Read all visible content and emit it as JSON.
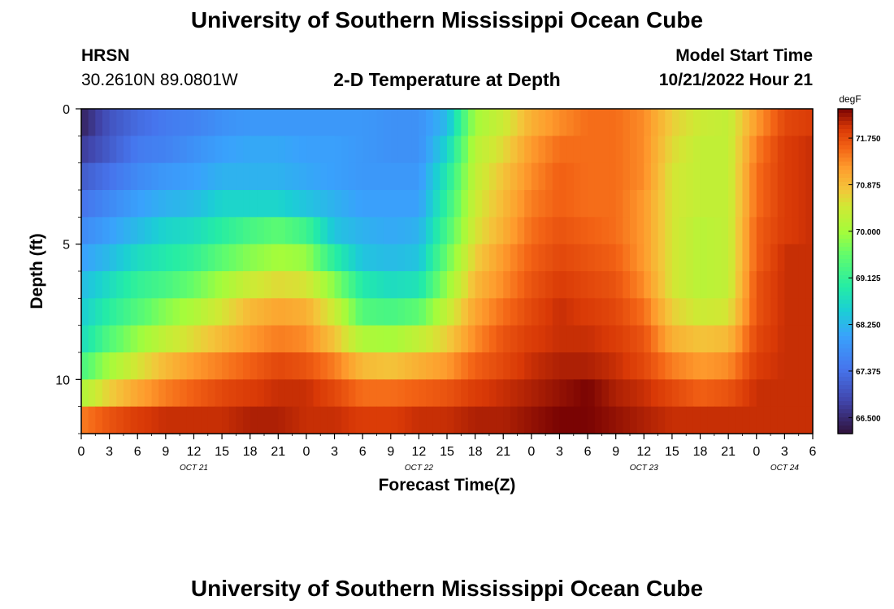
{
  "header": {
    "title": "University of Southern Mississippi Ocean Cube",
    "station_name": "HRSN",
    "station_coords": "30.2610N  89.0801W",
    "plot_title": "2-D Temperature at Depth",
    "model_start_label": "Model Start Time",
    "model_start_value": "10/21/2022 Hour 21"
  },
  "footer": {
    "title": "University of Southern Mississippi Ocean Cube"
  },
  "chart_data": {
    "type": "heatmap",
    "title": "2-D Temperature at Depth",
    "xlabel": "Forecast Time(Z)",
    "ylabel": "Depth (ft)",
    "x_unit": "hours since Oct 21 00Z",
    "xlim": [
      0,
      78
    ],
    "ylim": [
      12,
      0
    ],
    "x_ticks": [
      0,
      3,
      6,
      9,
      12,
      15,
      18,
      21,
      24,
      27,
      30,
      33,
      36,
      39,
      42,
      45,
      48,
      51,
      54,
      57,
      60,
      63,
      66,
      69,
      72,
      75,
      78
    ],
    "x_tick_labels": [
      "0",
      "3",
      "6",
      "9",
      "12",
      "15",
      "18",
      "21",
      "0",
      "3",
      "6",
      "9",
      "12",
      "15",
      "18",
      "21",
      "0",
      "3",
      "6",
      "9",
      "12",
      "15",
      "18",
      "21",
      "0",
      "3",
      "6"
    ],
    "date_labels": [
      {
        "text": "OCT 21",
        "hour": 12
      },
      {
        "text": "OCT 22",
        "hour": 36
      },
      {
        "text": "OCT 23",
        "hour": 60
      },
      {
        "text": "OCT 24",
        "hour": 75
      }
    ],
    "y_ticks": [
      0,
      5,
      10
    ],
    "y_tick_labels": [
      "0",
      "5",
      "10"
    ],
    "colorbar": {
      "unit": "degF",
      "min": 66.2,
      "max": 72.3,
      "ticks": [
        71.75,
        70.875,
        70.0,
        69.125,
        68.25,
        67.375,
        66.5
      ],
      "tick_labels": [
        "71.750",
        "70.875",
        "70.000",
        "69.125",
        "68.250",
        "67.375",
        "66.500"
      ],
      "colormap": "turbo"
    },
    "depth_rows": [
      0.5,
      1.5,
      2.5,
      3.5,
      4.5,
      5.5,
      6.5,
      7.5,
      8.5,
      9.5,
      10.5,
      11.5
    ],
    "time_columns": [
      0,
      3,
      6,
      9,
      12,
      15,
      18,
      21,
      24,
      27,
      30,
      33,
      36,
      39,
      42,
      45,
      48,
      51,
      54,
      57,
      60,
      63,
      66,
      69,
      72,
      75,
      78
    ],
    "values_degF": [
      [
        66.4,
        67.0,
        67.3,
        67.5,
        67.6,
        67.8,
        67.9,
        67.9,
        67.9,
        67.9,
        67.9,
        67.8,
        67.8,
        68.3,
        70.0,
        70.4,
        71.0,
        71.3,
        71.5,
        71.5,
        71.3,
        70.7,
        70.4,
        70.3,
        71.2,
        71.8,
        71.9
      ],
      [
        66.7,
        67.1,
        67.5,
        67.6,
        67.8,
        68.0,
        68.1,
        68.1,
        68.0,
        68.0,
        67.9,
        67.8,
        67.8,
        68.6,
        70.2,
        70.6,
        71.2,
        71.5,
        71.5,
        71.5,
        71.3,
        70.6,
        70.3,
        70.3,
        71.4,
        71.9,
        72.0
      ],
      [
        67.1,
        67.4,
        67.7,
        67.9,
        68.0,
        68.2,
        68.2,
        68.2,
        68.1,
        68.0,
        67.9,
        67.9,
        67.9,
        68.9,
        70.3,
        70.8,
        71.3,
        71.6,
        71.5,
        71.5,
        71.3,
        70.5,
        70.3,
        70.3,
        71.5,
        71.9,
        72.0
      ],
      [
        67.4,
        67.7,
        68.0,
        68.2,
        68.3,
        68.6,
        68.6,
        68.6,
        68.4,
        68.2,
        68.0,
        68.0,
        68.0,
        69.1,
        70.4,
        70.9,
        71.4,
        71.6,
        71.5,
        71.5,
        71.2,
        70.5,
        70.3,
        70.3,
        71.5,
        71.9,
        72.0
      ],
      [
        67.7,
        68.0,
        68.3,
        68.6,
        68.7,
        69.0,
        69.3,
        69.5,
        69.2,
        68.4,
        68.2,
        68.1,
        68.2,
        69.3,
        70.5,
        71.0,
        71.5,
        71.7,
        71.6,
        71.5,
        71.2,
        70.5,
        70.2,
        70.3,
        71.6,
        71.9,
        72.0
      ],
      [
        68.0,
        68.3,
        68.7,
        68.9,
        69.1,
        69.5,
        69.8,
        70.0,
        69.9,
        69.0,
        68.4,
        68.3,
        68.4,
        69.6,
        70.7,
        71.2,
        71.6,
        71.8,
        71.7,
        71.6,
        71.2,
        70.5,
        70.2,
        70.3,
        71.6,
        72.0,
        72.0
      ],
      [
        68.3,
        68.7,
        69.1,
        69.3,
        69.6,
        70.0,
        70.4,
        70.6,
        70.5,
        69.8,
        68.9,
        68.7,
        68.8,
        69.9,
        70.9,
        71.3,
        71.7,
        71.9,
        71.8,
        71.7,
        71.3,
        70.5,
        70.2,
        70.3,
        71.7,
        72.0,
        72.0
      ],
      [
        68.5,
        69.0,
        69.4,
        69.8,
        70.1,
        70.5,
        70.9,
        71.1,
        71.0,
        70.4,
        69.4,
        69.3,
        69.5,
        70.3,
        71.1,
        71.5,
        71.8,
        72.0,
        71.9,
        71.8,
        71.5,
        70.7,
        70.4,
        70.5,
        71.7,
        72.0,
        72.0
      ],
      [
        68.7,
        69.4,
        69.9,
        70.3,
        70.6,
        70.9,
        71.2,
        71.4,
        71.3,
        70.8,
        70.1,
        70.0,
        70.3,
        70.7,
        71.3,
        71.7,
        71.9,
        72.0,
        72.0,
        71.9,
        71.7,
        71.0,
        70.8,
        70.9,
        71.8,
        72.0,
        72.0
      ],
      [
        69.3,
        70.0,
        70.5,
        70.9,
        71.2,
        71.4,
        71.6,
        71.8,
        71.7,
        71.4,
        70.9,
        70.8,
        71.0,
        71.2,
        71.6,
        71.8,
        72.0,
        72.1,
        72.1,
        72.0,
        71.8,
        71.4,
        71.2,
        71.3,
        71.9,
        72.0,
        72.0
      ],
      [
        70.1,
        70.7,
        71.1,
        71.4,
        71.6,
        71.8,
        71.9,
        72.0,
        72.0,
        71.8,
        71.5,
        71.5,
        71.6,
        71.7,
        71.9,
        72.0,
        72.1,
        72.2,
        72.3,
        72.1,
        72.0,
        71.8,
        71.6,
        71.7,
        72.0,
        72.0,
        72.0
      ],
      [
        71.4,
        71.7,
        71.9,
        72.0,
        72.0,
        72.0,
        72.1,
        72.1,
        72.0,
        72.0,
        71.9,
        71.9,
        72.0,
        72.0,
        72.1,
        72.1,
        72.2,
        72.3,
        72.3,
        72.2,
        72.1,
        72.0,
        72.0,
        72.0,
        72.0,
        72.0,
        72.0
      ]
    ]
  }
}
